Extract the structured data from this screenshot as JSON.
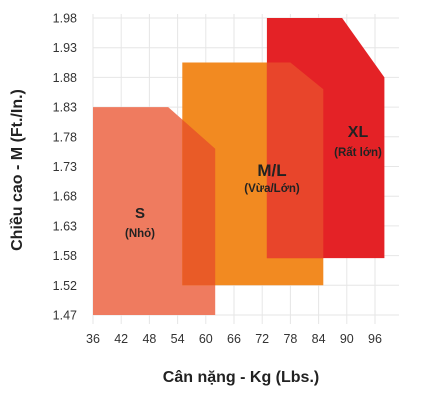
{
  "chart_data": {
    "type": "area",
    "xlabel": "Cân nặng - Kg (Lbs.)",
    "ylabel": "Chiều cao - M (Ft./In.)",
    "x_ticks": [
      36,
      42,
      48,
      54,
      60,
      66,
      72,
      78,
      84,
      90,
      96
    ],
    "y_ticks": [
      1.47,
      1.52,
      1.58,
      1.63,
      1.68,
      1.73,
      1.78,
      1.83,
      1.88,
      1.93,
      1.98
    ],
    "xlim": [
      36,
      98
    ],
    "ylim": [
      1.47,
      1.98
    ],
    "grid": true,
    "regions": [
      {
        "name": "S",
        "subtitle": "(Nhỏ)",
        "color": "#ef7b5f",
        "polygon": [
          [
            36,
            1.47
          ],
          [
            36,
            1.83
          ],
          [
            52,
            1.83
          ],
          [
            62,
            1.76
          ],
          [
            62,
            1.47
          ]
        ]
      },
      {
        "name": "M/L",
        "subtitle": "(Vừa/Lớn)",
        "color": "#f28a21",
        "polygon": [
          [
            55,
            1.52
          ],
          [
            55,
            1.905
          ],
          [
            78,
            1.905
          ],
          [
            85,
            1.86
          ],
          [
            85,
            1.52
          ]
        ]
      },
      {
        "name": "XL",
        "subtitle": "(Rất lớn)",
        "color": "#e42226",
        "polygon": [
          [
            73,
            1.575
          ],
          [
            73,
            1.98
          ],
          [
            89,
            1.98
          ],
          [
            98,
            1.88
          ],
          [
            98,
            1.575
          ]
        ]
      }
    ],
    "overlaps": [
      {
        "between": [
          "S",
          "M/L"
        ],
        "color": "#e95b27"
      },
      {
        "between": [
          "M/L",
          "XL"
        ],
        "color": "#e8452b"
      }
    ]
  }
}
